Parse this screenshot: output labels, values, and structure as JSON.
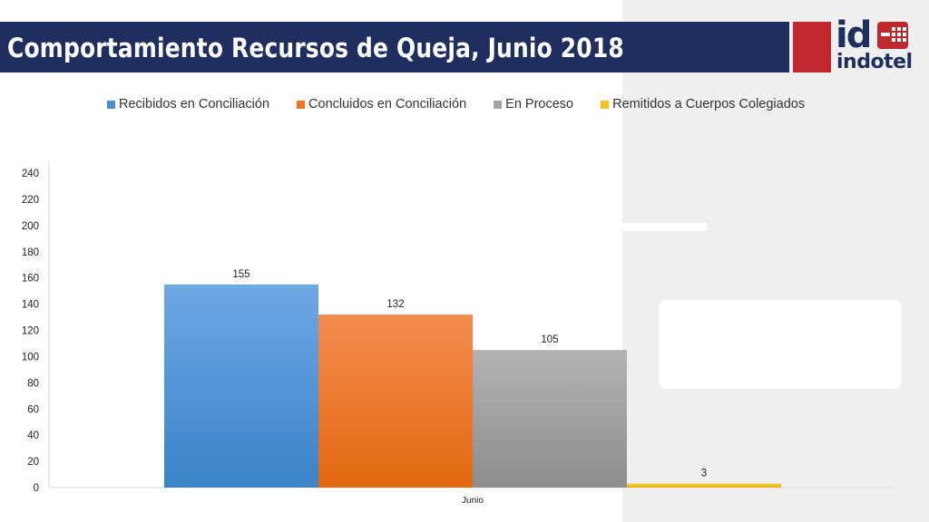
{
  "header": {
    "title": "Comportamiento Recursos de Queja, Junio 2018"
  },
  "logo": {
    "mark": "id",
    "word": "indotel"
  },
  "colors": {
    "header_bg": "#1f2e5f",
    "logo_red": "#c0282f",
    "panel_gray": "#efefef"
  },
  "chart_data": {
    "type": "bar",
    "categories": [
      "Junio"
    ],
    "series": [
      {
        "name": "Recibidos en Conciliación",
        "values": [
          155
        ],
        "color": "#4a8fd6"
      },
      {
        "name": "Concluidos en Conciliación",
        "values": [
          132
        ],
        "color": "#ec7525"
      },
      {
        "name": "En Proceso",
        "values": [
          105
        ],
        "color": "#a3a3a3"
      },
      {
        "name": "Remitidos a Cuerpos Colegiados",
        "values": [
          3
        ],
        "color": "#f3c21c"
      }
    ],
    "ylim": [
      0,
      240
    ],
    "yticks": [
      0,
      20,
      40,
      60,
      80,
      100,
      120,
      140,
      160,
      180,
      200,
      220,
      240
    ],
    "grid": false,
    "legend_position": "top"
  }
}
